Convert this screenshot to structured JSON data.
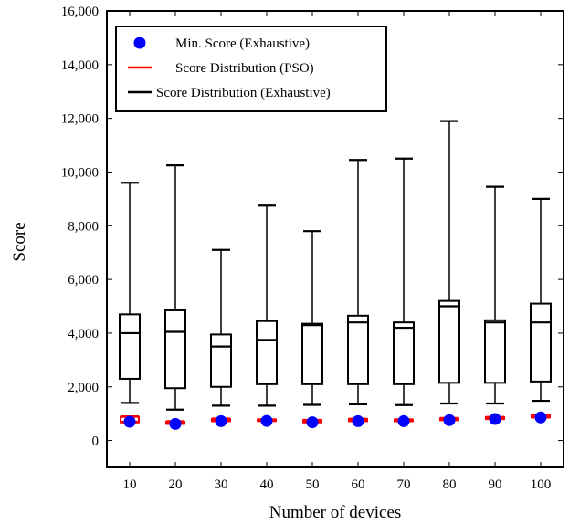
{
  "chart_data": {
    "type": "box",
    "xlabel": "Number of devices",
    "ylabel": "Score",
    "xlim": [
      5,
      105
    ],
    "ylim": [
      -1000,
      16000
    ],
    "categories": [
      "10",
      "20",
      "30",
      "40",
      "50",
      "60",
      "70",
      "80",
      "90",
      "100"
    ],
    "x": [
      10,
      20,
      30,
      40,
      50,
      60,
      70,
      80,
      90,
      100
    ],
    "y_ticks": [
      0,
      2000,
      4000,
      6000,
      8000,
      10000,
      12000,
      14000,
      16000
    ],
    "y_tick_labels": [
      "0",
      "2,000",
      "4,000",
      "6,000",
      "8,000",
      "10,000",
      "12,000",
      "14,000",
      "16,000"
    ],
    "series": [
      {
        "name": "Min. Score (Exhaustive)",
        "kind": "scatter",
        "color": "#0000ff",
        "values": [
          700,
          620,
          720,
          730,
          680,
          720,
          720,
          760,
          800,
          860
        ]
      },
      {
        "name": "Score Distribution (PSO)",
        "kind": "box",
        "color": "#ff0000",
        "boxes": [
          {
            "min": 680,
            "q1": 680,
            "median": 700,
            "q3": 880,
            "max": 900
          },
          {
            "min": 620,
            "q1": 620,
            "median": 640,
            "q3": 700,
            "max": 720
          },
          {
            "min": 720,
            "q1": 720,
            "median": 740,
            "q3": 800,
            "max": 820
          },
          {
            "min": 730,
            "q1": 730,
            "median": 740,
            "q3": 780,
            "max": 790
          },
          {
            "min": 680,
            "q1": 680,
            "median": 700,
            "q3": 760,
            "max": 770
          },
          {
            "min": 720,
            "q1": 720,
            "median": 740,
            "q3": 800,
            "max": 810
          },
          {
            "min": 720,
            "q1": 720,
            "median": 740,
            "q3": 780,
            "max": 790
          },
          {
            "min": 760,
            "q1": 760,
            "median": 780,
            "q3": 830,
            "max": 840
          },
          {
            "min": 800,
            "q1": 800,
            "median": 820,
            "q3": 870,
            "max": 880
          },
          {
            "min": 860,
            "q1": 860,
            "median": 880,
            "q3": 950,
            "max": 960
          }
        ]
      },
      {
        "name": "Score Distribution (Exhaustive)",
        "kind": "box",
        "color": "#000000",
        "boxes": [
          {
            "min": 1400,
            "q1": 2300,
            "median": 4000,
            "q3": 4700,
            "max": 9600
          },
          {
            "min": 1150,
            "q1": 1950,
            "median": 4050,
            "q3": 4850,
            "max": 10250
          },
          {
            "min": 1300,
            "q1": 2000,
            "median": 3500,
            "q3": 3950,
            "max": 7100
          },
          {
            "min": 1300,
            "q1": 2100,
            "median": 3750,
            "q3": 4450,
            "max": 8750
          },
          {
            "min": 1330,
            "q1": 2100,
            "median": 4300,
            "q3": 4350,
            "max": 7800
          },
          {
            "min": 1350,
            "q1": 2100,
            "median": 4400,
            "q3": 4650,
            "max": 10450
          },
          {
            "min": 1320,
            "q1": 2100,
            "median": 4200,
            "q3": 4400,
            "max": 10500
          },
          {
            "min": 1380,
            "q1": 2150,
            "median": 5000,
            "q3": 5200,
            "max": 11900
          },
          {
            "min": 1380,
            "q1": 2150,
            "median": 4400,
            "q3": 4480,
            "max": 9450
          },
          {
            "min": 1480,
            "q1": 2200,
            "median": 4400,
            "q3": 5100,
            "max": 9000
          }
        ]
      }
    ],
    "legend": {
      "placement": "top-left",
      "entries": [
        "Min. Score (Exhaustive)",
        "Score Distribution (PSO)",
        "Score Distribution (Exhaustive)"
      ]
    },
    "grid": false
  }
}
